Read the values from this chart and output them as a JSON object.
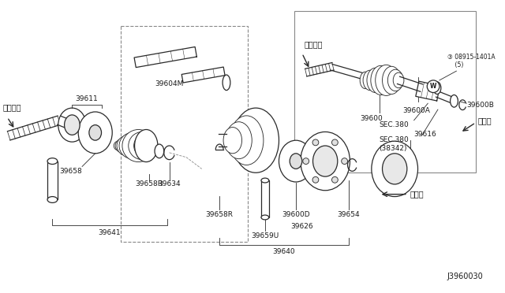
{
  "bg_color": "#ffffff",
  "line_color": "#2a2a2a",
  "text_color": "#1a1a1a",
  "diagram_id": "J3960030",
  "figsize": [
    6.4,
    3.72
  ],
  "dpi": 100,
  "labels": {
    "taiya_left": "タイヤ側",
    "taiya_right": "タイヤ側",
    "def_right": "デフ側",
    "def_lower": "デフ側",
    "p39611": "39611",
    "p39604M": "39604M",
    "p39658": "39658",
    "p39658R_l": "39658R",
    "p39634": "39634",
    "p39641": "39641",
    "p39658R_c": "39658R",
    "p39659U": "39659U",
    "p39600D": "39600D",
    "p39626": "39626",
    "p39654": "39654",
    "p39616": "39616",
    "p39640": "39640",
    "p39600": "39600",
    "p39600A": "39600A",
    "p39600B": "39600B",
    "sec380": "SEC.380",
    "sec380b": "SEC.380\n(38342)",
    "washer": "③ 08915-1401A\n    (5)"
  }
}
